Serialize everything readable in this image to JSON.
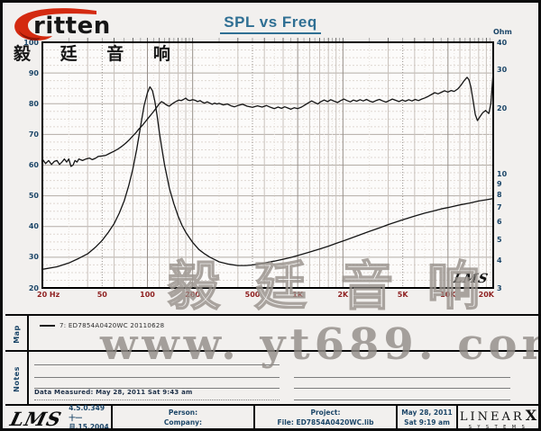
{
  "header": {
    "logo_text": "ritten",
    "logo_cn": "毅 廷 音 响",
    "title": "SPL vs Freq"
  },
  "chart_data": {
    "type": "line",
    "title": "SPL vs Freq",
    "grid": "on",
    "x_axis": {
      "unit": "Hz",
      "scale": "log",
      "min": 20,
      "max": 20000,
      "tick_labels": [
        "20 Hz",
        "50",
        "100",
        "200",
        "500",
        "1K",
        "2K",
        "5K",
        "10K",
        "20K"
      ],
      "tick_values": [
        20,
        50,
        100,
        200,
        500,
        1000,
        2000,
        5000,
        10000,
        20000
      ]
    },
    "y_left": {
      "unit": "dB SPL",
      "scale": "linear",
      "min": 20,
      "max": 100,
      "ticks": [
        100,
        90,
        80,
        70,
        60,
        50,
        40,
        30,
        20
      ]
    },
    "y_right": {
      "unit": "Ohm",
      "label": "Ohm",
      "scale": "log",
      "min": 3,
      "max": 40,
      "ticks": [
        40,
        30,
        20,
        10,
        9,
        8,
        7,
        6,
        5,
        4,
        3
      ]
    },
    "corner_logo": "LMS",
    "series": [
      {
        "name": "SPL response (7: ED7854A0420WC 20110628)",
        "axis": "left",
        "points": [
          [
            20,
            62
          ],
          [
            21,
            60.5
          ],
          [
            22,
            61.5
          ],
          [
            23,
            60.2
          ],
          [
            24,
            61.2
          ],
          [
            25,
            61.5
          ],
          [
            26,
            60.2
          ],
          [
            27,
            61
          ],
          [
            28,
            62
          ],
          [
            29,
            61
          ],
          [
            30,
            62
          ],
          [
            31,
            59.6
          ],
          [
            32,
            60
          ],
          [
            33,
            61.5
          ],
          [
            34,
            61
          ],
          [
            35,
            62
          ],
          [
            37,
            61.5
          ],
          [
            39,
            62
          ],
          [
            41,
            62.3
          ],
          [
            43,
            61.8
          ],
          [
            45,
            62.2
          ],
          [
            47,
            62.8
          ],
          [
            50,
            63
          ],
          [
            53,
            63.2
          ],
          [
            56,
            63.8
          ],
          [
            60,
            64.5
          ],
          [
            64,
            65.3
          ],
          [
            68,
            66.2
          ],
          [
            72,
            67.2
          ],
          [
            76,
            68.3
          ],
          [
            80,
            69.5
          ],
          [
            84,
            70.6
          ],
          [
            88,
            71.8
          ],
          [
            92,
            72.8
          ],
          [
            96,
            73.9
          ],
          [
            100,
            75
          ],
          [
            104,
            76
          ],
          [
            108,
            77
          ],
          [
            112,
            78
          ],
          [
            116,
            79
          ],
          [
            120,
            80
          ],
          [
            124,
            80.7
          ],
          [
            128,
            80.3
          ],
          [
            132,
            79.8
          ],
          [
            136,
            79.4
          ],
          [
            140,
            79.2
          ],
          [
            145,
            79.8
          ],
          [
            150,
            80.3
          ],
          [
            156,
            80.8
          ],
          [
            162,
            81.2
          ],
          [
            168,
            81
          ],
          [
            174,
            81.4
          ],
          [
            180,
            81.8
          ],
          [
            186,
            81.2
          ],
          [
            192,
            81
          ],
          [
            200,
            81.3
          ],
          [
            208,
            81.1
          ],
          [
            216,
            80.7
          ],
          [
            224,
            81
          ],
          [
            232,
            80.5
          ],
          [
            240,
            80.2
          ],
          [
            250,
            80.6
          ],
          [
            260,
            80.2
          ],
          [
            270,
            79.8
          ],
          [
            280,
            80.2
          ],
          [
            290,
            79.9
          ],
          [
            300,
            80.1
          ],
          [
            320,
            79.6
          ],
          [
            340,
            79.9
          ],
          [
            360,
            79.3
          ],
          [
            380,
            79
          ],
          [
            400,
            79.4
          ],
          [
            430,
            79.8
          ],
          [
            460,
            79.2
          ],
          [
            500,
            78.8
          ],
          [
            540,
            79.3
          ],
          [
            580,
            78.9
          ],
          [
            620,
            79.4
          ],
          [
            660,
            78.8
          ],
          [
            700,
            78.4
          ],
          [
            740,
            78.9
          ],
          [
            780,
            78.5
          ],
          [
            820,
            79
          ],
          [
            860,
            78.6
          ],
          [
            900,
            78.2
          ],
          [
            950,
            78.7
          ],
          [
            1000,
            78.4
          ],
          [
            1060,
            78.9
          ],
          [
            1120,
            79.6
          ],
          [
            1180,
            80.3
          ],
          [
            1240,
            80.9
          ],
          [
            1300,
            80.4
          ],
          [
            1360,
            79.9
          ],
          [
            1420,
            80.6
          ],
          [
            1500,
            81.2
          ],
          [
            1580,
            80.7
          ],
          [
            1660,
            81.3
          ],
          [
            1750,
            80.8
          ],
          [
            1840,
            80.4
          ],
          [
            1930,
            81
          ],
          [
            2030,
            81.5
          ],
          [
            2130,
            81
          ],
          [
            2240,
            80.6
          ],
          [
            2350,
            81.2
          ],
          [
            2470,
            80.8
          ],
          [
            2600,
            81.3
          ],
          [
            2730,
            80.9
          ],
          [
            2870,
            81.4
          ],
          [
            3000,
            80.9
          ],
          [
            3160,
            80.5
          ],
          [
            3320,
            81
          ],
          [
            3500,
            81.4
          ],
          [
            3680,
            80.9
          ],
          [
            3870,
            80.5
          ],
          [
            4060,
            81
          ],
          [
            4270,
            81.5
          ],
          [
            4490,
            81.1
          ],
          [
            4720,
            80.7
          ],
          [
            4960,
            81.2
          ],
          [
            5210,
            80.8
          ],
          [
            5480,
            81.3
          ],
          [
            5760,
            80.9
          ],
          [
            6050,
            81.4
          ],
          [
            6360,
            81
          ],
          [
            6690,
            81.5
          ],
          [
            7030,
            81.9
          ],
          [
            7390,
            82.4
          ],
          [
            7770,
            83
          ],
          [
            8170,
            83.6
          ],
          [
            8590,
            83.2
          ],
          [
            9030,
            83.7
          ],
          [
            9490,
            84.2
          ],
          [
            9980,
            83.8
          ],
          [
            10500,
            84.3
          ],
          [
            11000,
            84
          ],
          [
            11600,
            84.8
          ],
          [
            12200,
            86
          ],
          [
            12800,
            87.5
          ],
          [
            13400,
            88.6
          ],
          [
            13800,
            87.8
          ],
          [
            14200,
            85.5
          ],
          [
            14700,
            81
          ],
          [
            15200,
            76.5
          ],
          [
            15700,
            74.5
          ],
          [
            16200,
            75.5
          ],
          [
            17000,
            77
          ],
          [
            17800,
            77.8
          ],
          [
            18700,
            76.8
          ],
          [
            19300,
            80
          ],
          [
            20000,
            90.5
          ]
        ]
      },
      {
        "name": "Impedance (Ohm)",
        "axis": "right",
        "points": [
          [
            20,
            3.65
          ],
          [
            25,
            3.75
          ],
          [
            30,
            3.9
          ],
          [
            35,
            4.1
          ],
          [
            40,
            4.3
          ],
          [
            45,
            4.6
          ],
          [
            50,
            4.95
          ],
          [
            55,
            5.4
          ],
          [
            60,
            5.9
          ],
          [
            65,
            6.6
          ],
          [
            70,
            7.5
          ],
          [
            75,
            8.8
          ],
          [
            80,
            10.5
          ],
          [
            85,
            13
          ],
          [
            90,
            16.5
          ],
          [
            95,
            20.5
          ],
          [
            100,
            23.5
          ],
          [
            104,
            25
          ],
          [
            108,
            24
          ],
          [
            112,
            21.5
          ],
          [
            116,
            18.5
          ],
          [
            120,
            15.5
          ],
          [
            125,
            13
          ],
          [
            130,
            11
          ],
          [
            140,
            8.6
          ],
          [
            150,
            7.3
          ],
          [
            160,
            6.4
          ],
          [
            170,
            5.8
          ],
          [
            180,
            5.4
          ],
          [
            190,
            5.1
          ],
          [
            200,
            4.85
          ],
          [
            220,
            4.5
          ],
          [
            240,
            4.3
          ],
          [
            260,
            4.15
          ],
          [
            280,
            4.05
          ],
          [
            300,
            3.95
          ],
          [
            350,
            3.85
          ],
          [
            400,
            3.8
          ],
          [
            450,
            3.8
          ],
          [
            500,
            3.82
          ],
          [
            600,
            3.9
          ],
          [
            700,
            3.98
          ],
          [
            800,
            4.06
          ],
          [
            900,
            4.14
          ],
          [
            1000,
            4.22
          ],
          [
            1200,
            4.38
          ],
          [
            1400,
            4.52
          ],
          [
            1600,
            4.66
          ],
          [
            1800,
            4.8
          ],
          [
            2000,
            4.92
          ],
          [
            2500,
            5.2
          ],
          [
            3000,
            5.45
          ],
          [
            3500,
            5.65
          ],
          [
            4000,
            5.85
          ],
          [
            5000,
            6.15
          ],
          [
            6000,
            6.4
          ],
          [
            7000,
            6.6
          ],
          [
            8000,
            6.75
          ],
          [
            9000,
            6.9
          ],
          [
            10000,
            7.0
          ],
          [
            12000,
            7.2
          ],
          [
            14000,
            7.35
          ],
          [
            16000,
            7.5
          ],
          [
            18000,
            7.6
          ],
          [
            20000,
            7.7
          ]
        ]
      }
    ]
  },
  "watermarks": {
    "chart_cn": "毅廷音响",
    "site": "www. yt689. com"
  },
  "map_section": {
    "label": "Map",
    "legend": "7: ED7854A0420WC  20110628"
  },
  "notes_section": {
    "label": "Notes",
    "data_measured": "Data Measured: May 28, 2011  Sat 9:43 am"
  },
  "footer": {
    "lms_logo": "LMS",
    "version": "4.5.0.349",
    "version_date": "十一月.15.2004",
    "person_label": "Person:",
    "company_label": "Company:",
    "project_label": "Project:",
    "file_label": "File: ED7854A0420WC.lib",
    "date": "May 28, 2011",
    "time": "Sat 9:19 am",
    "brand_linear": "LINEAR",
    "brand_x": "X",
    "brand_systems": "SYSTEMS"
  },
  "colors": {
    "title": "#2f6f93",
    "axis_navy": "#1c4668",
    "freq_red": "#8e1f1f",
    "curve": "#141414",
    "logo_red": "#d42a10"
  }
}
